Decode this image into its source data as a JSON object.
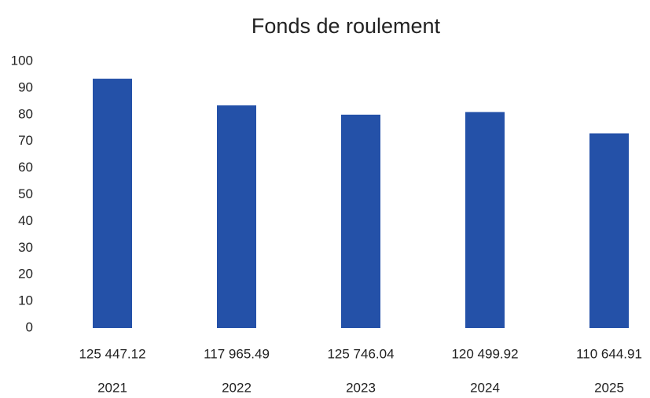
{
  "chart_data": {
    "type": "bar",
    "title": "Fonds de roulement",
    "categories": [
      "2021",
      "2022",
      "2023",
      "2024",
      "2025"
    ],
    "amounts": [
      "125 447.12",
      "117 965.49",
      "125 746.04",
      "120 499.92",
      "110 644.91"
    ],
    "values": [
      93.5,
      83.5,
      80,
      81,
      73
    ],
    "color": "#2451a8",
    "ylim": [
      0,
      100
    ],
    "yticks": [
      0,
      10,
      20,
      30,
      40,
      50,
      60,
      70,
      80,
      90,
      100
    ],
    "grid": false
  }
}
